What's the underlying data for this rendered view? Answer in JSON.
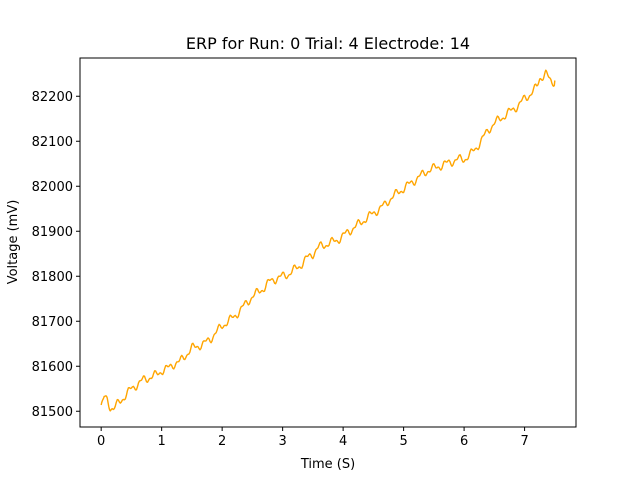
{
  "chart_data": {
    "type": "line",
    "title": "ERP for Run: 0 Trial: 4 Electrode: 14",
    "xlabel": "Time (S)",
    "ylabel": "Voltage (mV)",
    "xlim": [
      -0.35,
      7.85
    ],
    "ylim": [
      81465,
      82285
    ],
    "xticks": [
      0,
      1,
      2,
      3,
      4,
      5,
      6,
      7
    ],
    "yticks": [
      81500,
      81600,
      81700,
      81800,
      81900,
      82000,
      82100,
      82200
    ],
    "grid": false,
    "legend": "none",
    "series": [
      {
        "color": "#FFA500",
        "x": [
          0.0,
          0.05,
          0.1,
          0.15,
          0.2,
          0.3,
          0.4,
          0.5,
          0.6,
          0.7,
          0.8,
          0.9,
          1.0,
          1.1,
          1.2,
          1.3,
          1.4,
          1.5,
          1.6,
          1.7,
          1.8,
          1.9,
          2.0,
          2.1,
          2.2,
          2.3,
          2.4,
          2.5,
          2.6,
          2.7,
          2.8,
          2.9,
          3.0,
          3.1,
          3.2,
          3.3,
          3.4,
          3.5,
          3.6,
          3.7,
          3.8,
          3.9,
          4.0,
          4.1,
          4.2,
          4.3,
          4.4,
          4.5,
          4.6,
          4.7,
          4.8,
          4.9,
          5.0,
          5.1,
          5.2,
          5.3,
          5.4,
          5.5,
          5.6,
          5.7,
          5.8,
          5.9,
          6.0,
          6.1,
          6.2,
          6.3,
          6.4,
          6.5,
          6.6,
          6.7,
          6.8,
          6.9,
          7.0,
          7.1,
          7.2,
          7.25,
          7.3,
          7.35,
          7.4,
          7.45,
          7.5
        ],
        "y": [
          81510,
          81530,
          81525,
          81510,
          81505,
          81520,
          81535,
          81550,
          81560,
          81570,
          81575,
          81580,
          81590,
          81595,
          81605,
          81610,
          81625,
          81640,
          81645,
          81650,
          81660,
          81675,
          81690,
          81700,
          81710,
          81725,
          81740,
          81755,
          81765,
          81775,
          81790,
          81795,
          81800,
          81805,
          81815,
          81825,
          81840,
          81850,
          81865,
          81870,
          81875,
          81880,
          81890,
          81900,
          81910,
          81920,
          81930,
          81940,
          81950,
          81960,
          81975,
          81985,
          81995,
          82005,
          82015,
          82025,
          82035,
          82040,
          82045,
          82050,
          82055,
          82060,
          82060,
          82070,
          82085,
          82105,
          82125,
          82140,
          82150,
          82160,
          82170,
          82180,
          82195,
          82205,
          82220,
          82240,
          82245,
          82250,
          82240,
          82230,
          82235
        ]
      }
    ]
  }
}
